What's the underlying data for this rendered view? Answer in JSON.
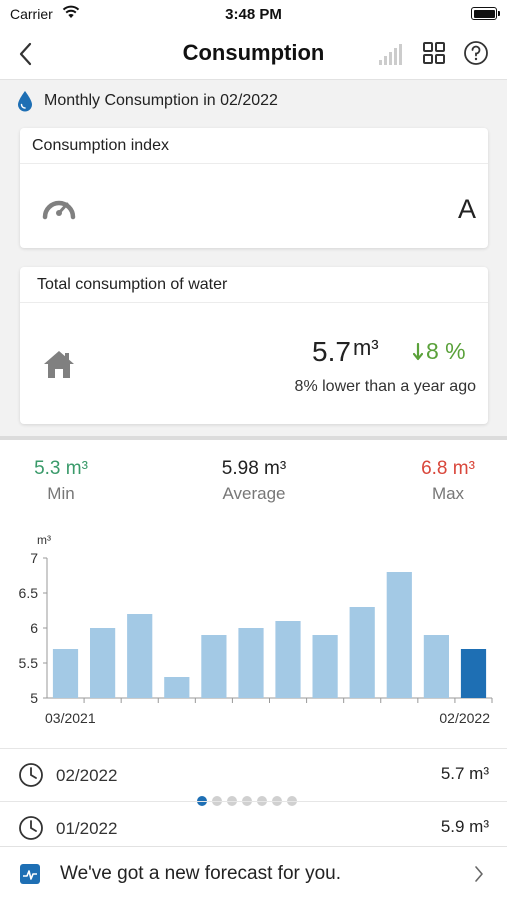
{
  "status_bar": {
    "carrier": "Carrier",
    "time": "3:48 PM"
  },
  "nav": {
    "title": "Consumption",
    "back_icon": "chevron-left-icon",
    "actions": [
      "signal-icon",
      "tiles-icon",
      "help-icon"
    ]
  },
  "section": {
    "icon": "water-drop-icon",
    "title": "Monthly Consumption in 02/2022"
  },
  "index_card": {
    "header": "Consumption index",
    "icon": "gauge-icon",
    "value": "A"
  },
  "total_card": {
    "header": "Total consumption of water",
    "icon": "house-icon",
    "value": "5.7",
    "unit": "m³",
    "trend": "8 %",
    "trend_direction": "down",
    "comparison": "8% lower than a year ago"
  },
  "stats": {
    "min": {
      "value": "5.3 m³",
      "label": "Min"
    },
    "average": {
      "value": "5.98 m³",
      "label": "Average"
    },
    "max": {
      "value": "6.8 m³",
      "label": "Max"
    }
  },
  "chart_data": {
    "type": "bar",
    "ylabel": "m³",
    "ylim": [
      5,
      7
    ],
    "yticks": [
      "5",
      "5.5",
      "6",
      "6.5",
      "7"
    ],
    "x_start_label": "03/2021",
    "x_end_label": "02/2022",
    "values": [
      5.7,
      6.0,
      6.2,
      5.3,
      5.9,
      6.0,
      6.1,
      5.9,
      6.3,
      6.8,
      5.9,
      5.7
    ],
    "bar_color": "#a3c9e5",
    "highlight_color": "#1e6fb4",
    "highlight_index": 11
  },
  "history": [
    {
      "date": "02/2022",
      "value": "5.7 m³",
      "icon": "clock-icon"
    },
    {
      "date": "01/2022",
      "value": "5.9 m³",
      "icon": "clock-icon"
    }
  ],
  "pager": {
    "count": 7,
    "active": 0
  },
  "banner": {
    "text": "We've got a new forecast for you.",
    "icon": "forecast-icon"
  },
  "colors": {
    "accent": "#1e6fb4",
    "min": "#3a9a6a",
    "max": "#d9473b",
    "trend": "#5aa13a"
  }
}
